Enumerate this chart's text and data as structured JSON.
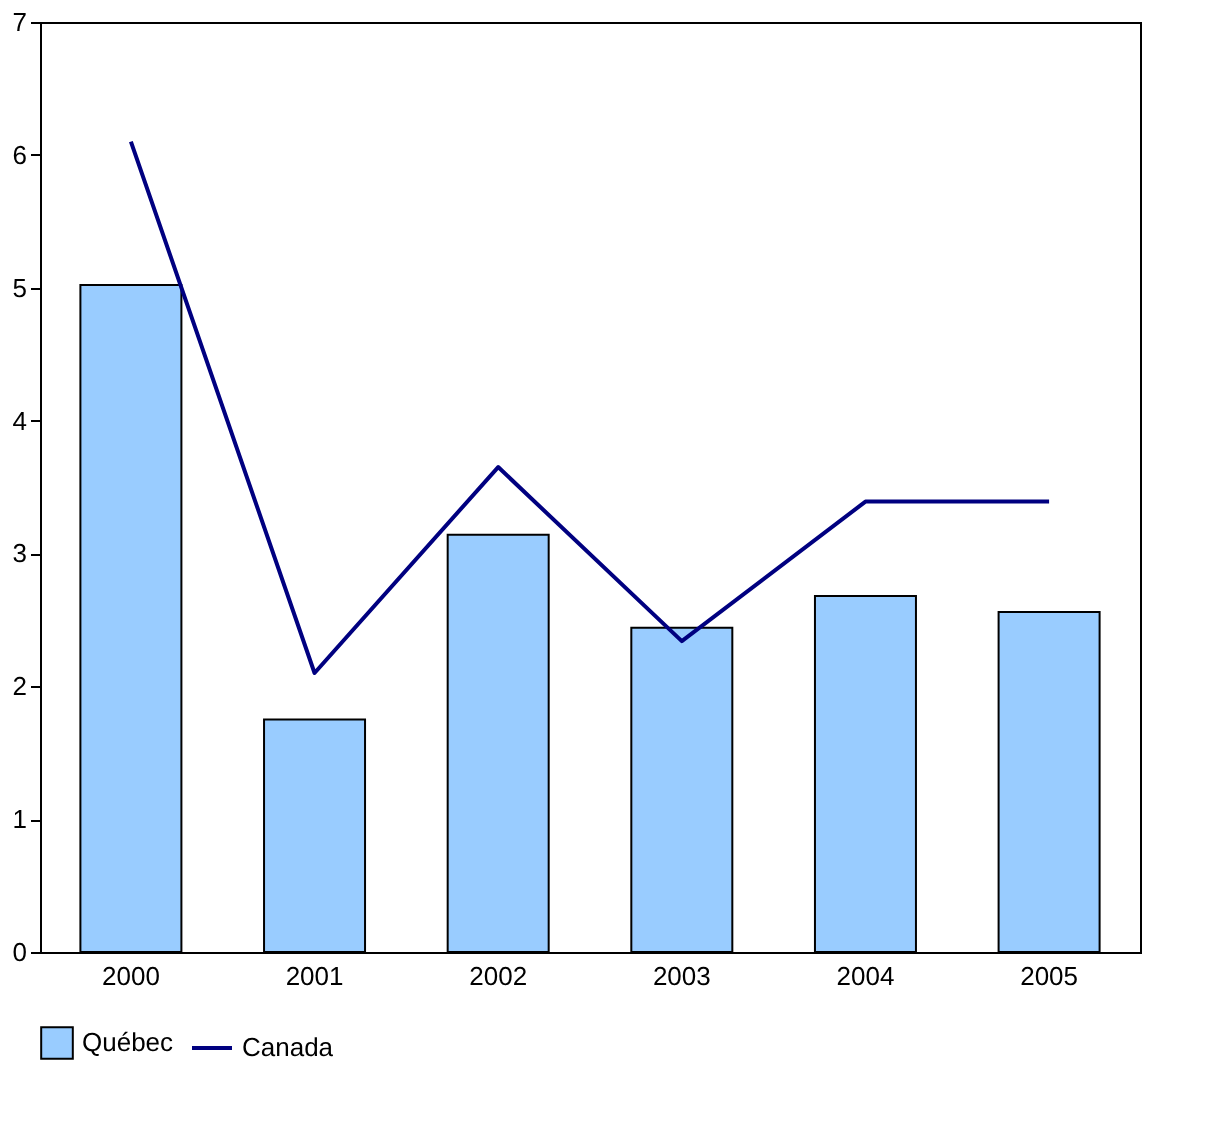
{
  "chart_data": {
    "type": "bar",
    "categories": [
      "2000",
      "2001",
      "2002",
      "2003",
      "2004",
      "2005"
    ],
    "series": [
      {
        "name": "Québec",
        "color": "#99ccff",
        "values": [
          5.02,
          1.75,
          3.14,
          2.44,
          2.68,
          2.56
        ]
      },
      {
        "name": "Canada",
        "type": "line",
        "color": "#000080",
        "values": [
          6.1,
          2.1,
          3.65,
          2.34,
          3.39,
          3.39
        ]
      }
    ],
    "ylim": [
      0,
      7
    ],
    "yticks": [
      0,
      1,
      2,
      3,
      4,
      5,
      6,
      7
    ],
    "grid": false,
    "legend": "bottom"
  }
}
